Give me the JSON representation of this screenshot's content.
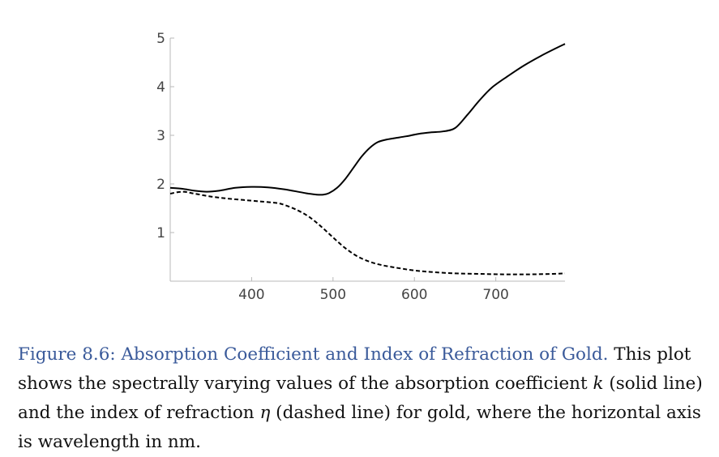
{
  "chart_data": {
    "type": "line",
    "xlabel": "",
    "ylabel": "",
    "xlim": [
      300,
      785
    ],
    "ylim": [
      0,
      5
    ],
    "xticks": [
      400,
      500,
      600,
      700
    ],
    "yticks": [
      1,
      2,
      3,
      4,
      5
    ],
    "grid": false,
    "legend": "none",
    "series": [
      {
        "style": "solid",
        "color": "#000000",
        "x": [
          300,
          315,
          330,
          345,
          360,
          380,
          400,
          420,
          440,
          460,
          470,
          480,
          488,
          495,
          505,
          515,
          525,
          535,
          545,
          555,
          565,
          575,
          590,
          605,
          620,
          635,
          650,
          665,
          680,
          695,
          715,
          735,
          755,
          775,
          785
        ],
        "y": [
          1.92,
          1.9,
          1.86,
          1.84,
          1.86,
          1.92,
          1.94,
          1.93,
          1.89,
          1.83,
          1.8,
          1.78,
          1.78,
          1.81,
          1.92,
          2.1,
          2.33,
          2.56,
          2.74,
          2.86,
          2.91,
          2.94,
          2.98,
          3.03,
          3.06,
          3.08,
          3.15,
          3.42,
          3.72,
          3.98,
          4.22,
          4.44,
          4.63,
          4.8,
          4.88
        ]
      },
      {
        "style": "dashed",
        "color": "#000000",
        "x": [
          300,
          315,
          330,
          350,
          370,
          390,
          410,
          430,
          440,
          455,
          470,
          485,
          500,
          515,
          530,
          545,
          560,
          580,
          600,
          620,
          650,
          680,
          710,
          740,
          770,
          785
        ],
        "y": [
          1.8,
          1.84,
          1.8,
          1.74,
          1.7,
          1.67,
          1.64,
          1.61,
          1.57,
          1.47,
          1.33,
          1.13,
          0.9,
          0.68,
          0.51,
          0.4,
          0.33,
          0.27,
          0.22,
          0.19,
          0.16,
          0.15,
          0.14,
          0.14,
          0.15,
          0.16
        ]
      }
    ]
  },
  "caption": {
    "figure_title": "Figure 8.6: Absorption Coefficient and Index of Refraction of Gold.",
    "text_1": " This plot shows the spectrally varying values of the absorption coefficient ",
    "symbol_k": "k",
    "text_2": " (solid line) and the index of refraction ",
    "symbol_eta": "η",
    "text_3": " (dashed line) for gold, where the horizontal axis is wavelength in nm."
  }
}
